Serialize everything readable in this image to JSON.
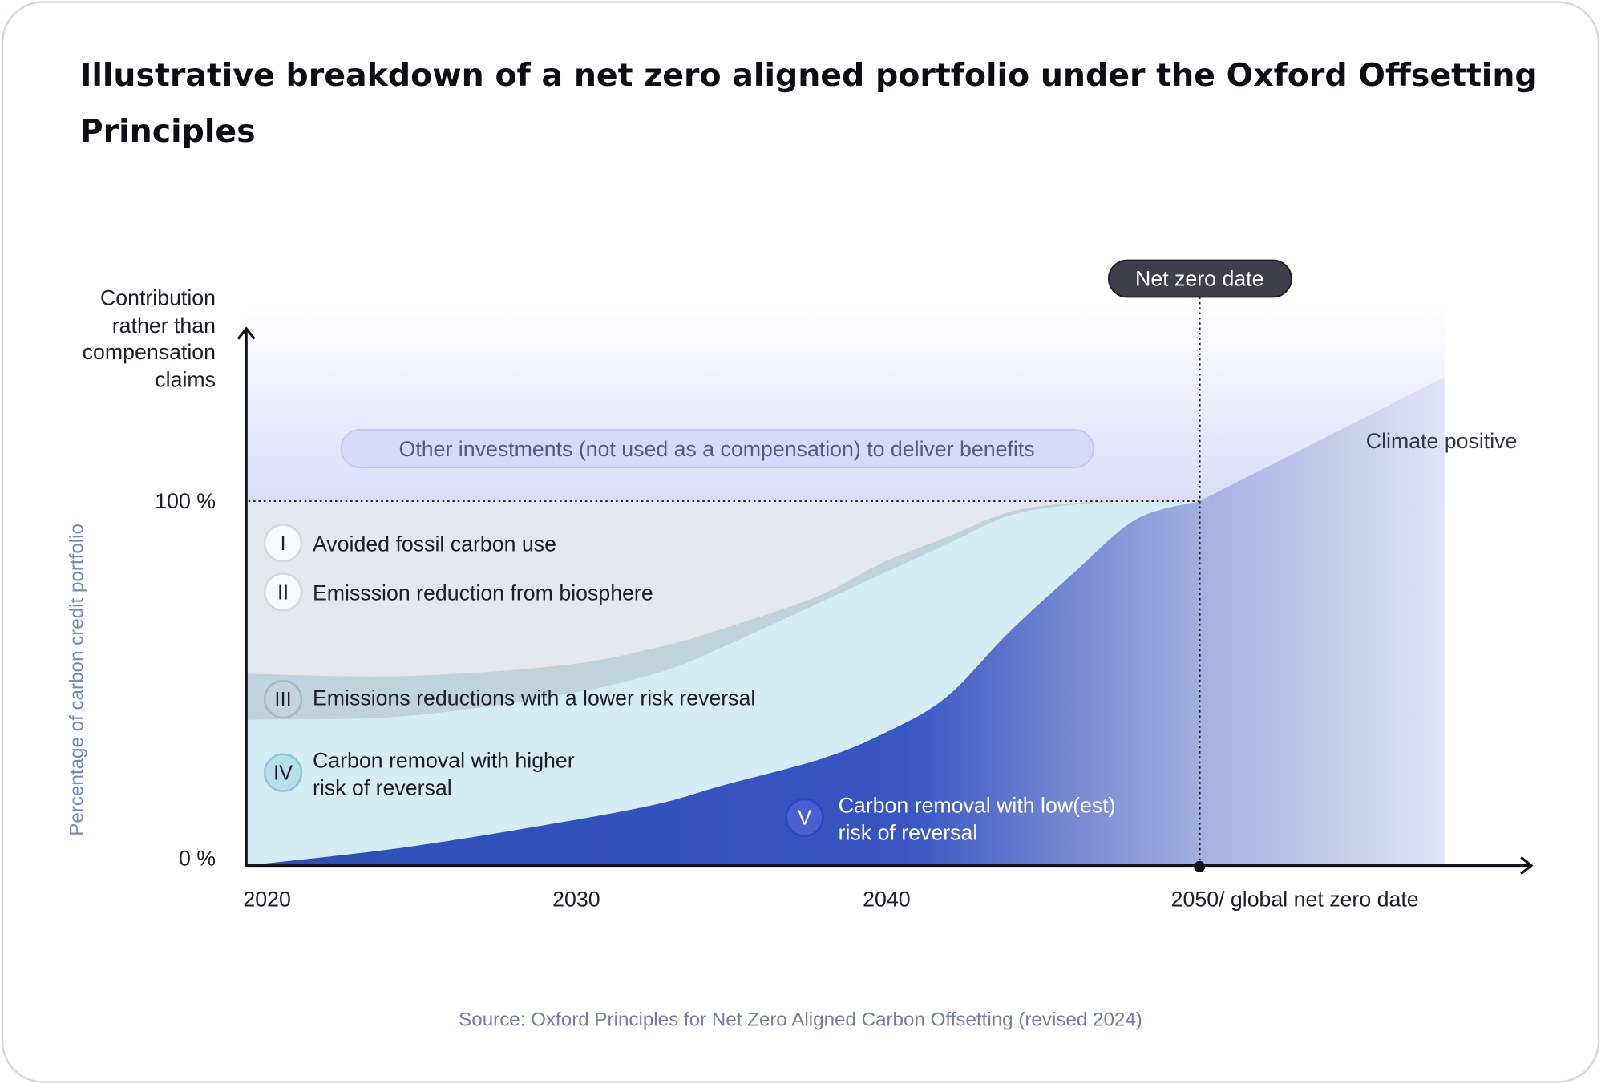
{
  "title_line1": "Illustrative breakdown of a net zero aligned portfolio under the Oxford Offsetting",
  "title_line2": "Principles",
  "source": "Source: Oxford Principles for Net Zero Aligned Carbon Offsetting (revised 2024)",
  "colors": {
    "avoided": "#e4e7ec",
    "biosphere_band": "#c0d3dc",
    "higher_risk_removal": "#d5ecf2",
    "low_risk_removal_dark": "#2e4db5",
    "low_risk_removal_light": "#dfe3f4",
    "other_investments": "#dadbf8",
    "net_zero_pill": "#3f3f4a"
  },
  "chart_data": {
    "type": "area",
    "title": "Illustrative breakdown of a net zero aligned portfolio under the Oxford Offsetting Principles",
    "xlabel": "",
    "ylabel": "Percentage of carbon credit portfolio",
    "ylabel_top": [
      "Contribution",
      "rather than",
      "compensation",
      "claims"
    ],
    "xlim": [
      2020,
      2058
    ],
    "ylim": [
      0,
      100
    ],
    "x_ticks": [
      "2020",
      "2030",
      "2040",
      "2050/ global net zero date"
    ],
    "y_ticks": [
      "100 %",
      "0 %"
    ],
    "x": [
      2020,
      2025,
      2030,
      2033,
      2035,
      2038,
      2040,
      2042,
      2044,
      2046,
      2048,
      2050,
      2057.7
    ],
    "series": [
      {
        "name": "Avoided fossil carbon use",
        "numeral": "I",
        "top": [
          100,
          100,
          100,
          100,
          100,
          100,
          100,
          100,
          100,
          100,
          100,
          100,
          null
        ]
      },
      {
        "name": "Emisssion reduction from biosphere",
        "numeral": "II",
        "top": [
          52.6,
          52,
          55,
          60,
          65,
          74,
          83,
          90,
          97,
          99.5,
          100,
          100,
          null
        ]
      },
      {
        "name": "Emissions reductions with a lower risk reversal",
        "numeral": "III",
        "top": [
          40,
          41,
          47,
          53,
          60,
          72,
          80,
          88,
          96,
          99,
          100,
          100,
          null
        ]
      },
      {
        "name": "Carbon removal with higher risk of reversal",
        "numeral": "IV",
        "lines": [
          "Carbon removal with higher",
          "risk of reversal"
        ]
      },
      {
        "name": "Carbon removal with low(est) risk of reversal",
        "numeral": "V",
        "lines": [
          "Carbon removal with low(est)",
          "risk of reversal"
        ],
        "top": [
          0,
          5,
          12,
          17,
          22,
          29,
          36,
          46,
          64,
          80,
          95,
          100,
          134
        ]
      }
    ],
    "annotations": {
      "other_investments": "Other investments (not used as a compensation) to deliver benefits",
      "net_zero": "Net zero date",
      "net_zero_year": 2050,
      "climate_positive": "Climate positive"
    }
  }
}
